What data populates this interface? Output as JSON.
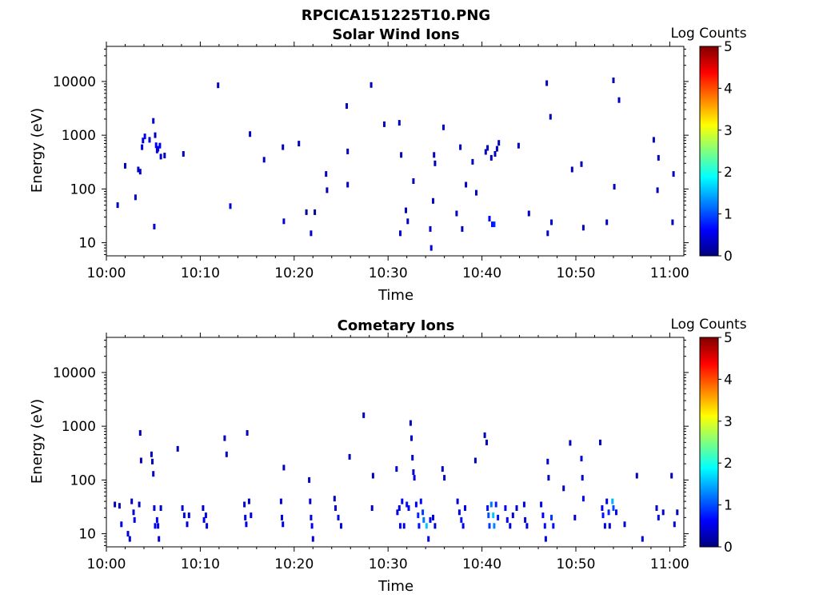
{
  "figure_title": "RPCICA151225T10.PNG",
  "colors": {
    "colormap": [
      "#00007f",
      "#0000ff",
      "#007fff",
      "#00ffff",
      "#7fff7f",
      "#ffff00",
      "#ff7f00",
      "#ff0000",
      "#7f0000"
    ]
  },
  "chart_data": [
    {
      "type": "heatmap",
      "title": "Solar Wind Ions",
      "xlabel": "Time",
      "ylabel": "Energy (eV)",
      "xticks": [
        "10:00",
        "10:10",
        "10:20",
        "10:30",
        "10:40",
        "10:50",
        "11:00"
      ],
      "xlim_min": [
        0,
        61.5
      ],
      "yticks": [
        "10",
        "100",
        "1000",
        "10000"
      ],
      "ylim_eV": [
        5.7,
        45000
      ],
      "yscale": "log",
      "colorbar": {
        "label": "Log Counts",
        "ticks": [
          "0",
          "1",
          "2",
          "3",
          "4",
          "5"
        ],
        "range": [
          0,
          5
        ]
      },
      "points": [
        [
          1.2,
          50,
          0.3
        ],
        [
          3.1,
          70,
          0.3
        ],
        [
          2.0,
          270,
          0.3
        ],
        [
          3.4,
          230,
          0.3
        ],
        [
          3.6,
          210,
          0.4
        ],
        [
          3.8,
          600,
          0.5
        ],
        [
          3.9,
          800,
          0.5
        ],
        [
          4.1,
          950,
          0.6
        ],
        [
          4.6,
          820,
          0.4
        ],
        [
          5.0,
          1850,
          0.4
        ],
        [
          5.2,
          1000,
          0.3
        ],
        [
          5.3,
          650,
          0.6
        ],
        [
          5.4,
          520,
          0.5
        ],
        [
          5.5,
          560,
          0.5
        ],
        [
          5.7,
          640,
          0.6
        ],
        [
          5.8,
          400,
          0.4
        ],
        [
          6.2,
          420,
          0.3
        ],
        [
          8.2,
          450,
          0.3
        ],
        [
          5.1,
          20,
          0.4
        ],
        [
          11.9,
          8500,
          0.3
        ],
        [
          13.2,
          48,
          0.4
        ],
        [
          15.3,
          1050,
          0.3
        ],
        [
          16.8,
          350,
          0.3
        ],
        [
          18.8,
          600,
          0.3
        ],
        [
          18.9,
          25,
          0.4
        ],
        [
          20.5,
          700,
          0.3
        ],
        [
          21.3,
          37,
          0.1
        ],
        [
          22.2,
          37,
          0.1
        ],
        [
          21.8,
          15,
          0.4
        ],
        [
          23.4,
          190,
          0.3
        ],
        [
          23.5,
          95,
          0.3
        ],
        [
          25.6,
          3500,
          0.3
        ],
        [
          25.7,
          500,
          0.3
        ],
        [
          25.7,
          120,
          0.3
        ],
        [
          28.2,
          8600,
          0.3
        ],
        [
          29.6,
          1600,
          0.3
        ],
        [
          31.2,
          1700,
          0.3
        ],
        [
          31.4,
          430,
          0.3
        ],
        [
          31.3,
          15,
          0.4
        ],
        [
          31.9,
          40,
          0.3
        ],
        [
          32.1,
          25,
          0.3
        ],
        [
          32.7,
          140,
          0.3
        ],
        [
          34.5,
          18,
          0.4
        ],
        [
          34.6,
          8,
          0.5
        ],
        [
          34.8,
          60,
          0.3
        ],
        [
          34.9,
          430,
          0.3
        ],
        [
          35.0,
          300,
          0.3
        ],
        [
          35.9,
          1400,
          0.4
        ],
        [
          37.3,
          35,
          0.3
        ],
        [
          37.7,
          600,
          0.3
        ],
        [
          37.9,
          18,
          0.3
        ],
        [
          38.3,
          120,
          0.3
        ],
        [
          39.0,
          320,
          0.3
        ],
        [
          39.4,
          85,
          0.3
        ],
        [
          40.4,
          490,
          0.3
        ],
        [
          40.6,
          580,
          0.3
        ],
        [
          40.8,
          28,
          0.6
        ],
        [
          41.0,
          380,
          0.3
        ],
        [
          41.1,
          22,
          0.7
        ],
        [
          41.3,
          22,
          0.8
        ],
        [
          41.4,
          450,
          0.3
        ],
        [
          41.6,
          560,
          0.3
        ],
        [
          41.8,
          720,
          0.3
        ],
        [
          43.9,
          640,
          0.3
        ],
        [
          45.0,
          35,
          0.3
        ],
        [
          46.9,
          9300,
          0.3
        ],
        [
          47.0,
          15,
          0.4
        ],
        [
          47.3,
          2200,
          0.3
        ],
        [
          47.4,
          24,
          0.4
        ],
        [
          49.6,
          230,
          0.3
        ],
        [
          50.6,
          290,
          0.3
        ],
        [
          50.8,
          19,
          0.3
        ],
        [
          53.3,
          24,
          0.3
        ],
        [
          54.0,
          10500,
          0.3
        ],
        [
          54.1,
          110,
          0.3
        ],
        [
          54.6,
          4500,
          0.3
        ],
        [
          58.3,
          820,
          0.3
        ],
        [
          58.8,
          380,
          0.3
        ],
        [
          58.7,
          95,
          0.3
        ],
        [
          60.4,
          190,
          0.3
        ],
        [
          60.3,
          24,
          0.3
        ]
      ]
    },
    {
      "type": "heatmap",
      "title": "Cometary Ions",
      "xlabel": "Time",
      "ylabel": "Energy (eV)",
      "xticks": [
        "10:00",
        "10:10",
        "10:20",
        "10:30",
        "10:40",
        "10:50",
        "11:00"
      ],
      "xlim_min": [
        0,
        61.5
      ],
      "yticks": [
        "10",
        "100",
        "1000",
        "10000"
      ],
      "ylim_eV": [
        5.7,
        45000
      ],
      "yscale": "log",
      "colorbar": {
        "label": "Log Counts",
        "ticks": [
          "0",
          "1",
          "2",
          "3",
          "4",
          "5"
        ],
        "range": [
          0,
          5
        ]
      },
      "points": [
        [
          0.9,
          35,
          0.3
        ],
        [
          1.4,
          33,
          0.3
        ],
        [
          1.6,
          15,
          0.5
        ],
        [
          2.3,
          10,
          0.4
        ],
        [
          2.5,
          8,
          0.4
        ],
        [
          2.7,
          40,
          0.3
        ],
        [
          2.9,
          25,
          0.4
        ],
        [
          3.0,
          18,
          0.5
        ],
        [
          3.6,
          750,
          0.3
        ],
        [
          3.7,
          230,
          0.3
        ],
        [
          3.5,
          35,
          0.3
        ],
        [
          4.8,
          300,
          0.3
        ],
        [
          4.9,
          220,
          0.3
        ],
        [
          5.0,
          130,
          0.4
        ],
        [
          5.1,
          30,
          0.5
        ],
        [
          5.2,
          14,
          0.6
        ],
        [
          5.4,
          18,
          0.6
        ],
        [
          5.5,
          14,
          0.5
        ],
        [
          5.6,
          8,
          0.4
        ],
        [
          5.8,
          30,
          0.4
        ],
        [
          7.6,
          380,
          0.3
        ],
        [
          8.1,
          30,
          0.5
        ],
        [
          8.3,
          22,
          0.5
        ],
        [
          8.6,
          15,
          0.4
        ],
        [
          8.8,
          22,
          0.4
        ],
        [
          10.3,
          30,
          0.4
        ],
        [
          10.4,
          18,
          0.5
        ],
        [
          10.6,
          22,
          0.5
        ],
        [
          10.7,
          14,
          0.5
        ],
        [
          12.6,
          600,
          0.3
        ],
        [
          12.8,
          300,
          0.3
        ],
        [
          14.7,
          35,
          0.4
        ],
        [
          14.8,
          20,
          0.5
        ],
        [
          14.9,
          15,
          0.5
        ],
        [
          15.0,
          750,
          0.3
        ],
        [
          15.2,
          40,
          0.3
        ],
        [
          15.4,
          22,
          0.5
        ],
        [
          18.6,
          40,
          0.4
        ],
        [
          18.7,
          20,
          0.5
        ],
        [
          18.8,
          15,
          0.5
        ],
        [
          18.9,
          170,
          0.3
        ],
        [
          21.6,
          100,
          0.3
        ],
        [
          21.7,
          40,
          0.4
        ],
        [
          21.8,
          20,
          0.5
        ],
        [
          21.9,
          14,
          0.6
        ],
        [
          22.0,
          8,
          0.4
        ],
        [
          24.3,
          45,
          0.3
        ],
        [
          24.4,
          30,
          0.4
        ],
        [
          24.7,
          20,
          0.5
        ],
        [
          25.0,
          14,
          0.5
        ],
        [
          25.9,
          270,
          0.3
        ],
        [
          27.4,
          1600,
          0.3
        ],
        [
          28.3,
          30,
          0.3
        ],
        [
          28.4,
          120,
          0.3
        ],
        [
          30.9,
          160,
          0.4
        ],
        [
          31.0,
          25,
          0.5
        ],
        [
          31.2,
          30,
          0.5
        ],
        [
          31.3,
          14,
          0.6
        ],
        [
          31.5,
          40,
          0.6
        ],
        [
          31.7,
          14,
          0.5
        ],
        [
          32.0,
          35,
          0.7
        ],
        [
          32.2,
          30,
          0.6
        ],
        [
          32.4,
          1150,
          0.3
        ],
        [
          32.5,
          600,
          0.4
        ],
        [
          32.6,
          260,
          0.4
        ],
        [
          32.7,
          140,
          0.4
        ],
        [
          32.8,
          110,
          0.5
        ],
        [
          33.0,
          35,
          0.6
        ],
        [
          33.2,
          22,
          0.8
        ],
        [
          33.3,
          14,
          0.7
        ],
        [
          33.5,
          40,
          0.7
        ],
        [
          33.7,
          25,
          0.9
        ],
        [
          33.8,
          18,
          1.2
        ],
        [
          34.1,
          14,
          1.6
        ],
        [
          34.3,
          8,
          0.5
        ],
        [
          34.5,
          18,
          0.6
        ],
        [
          34.8,
          20,
          0.5
        ],
        [
          35.0,
          14,
          0.4
        ],
        [
          35.8,
          160,
          0.3
        ],
        [
          36.0,
          110,
          0.3
        ],
        [
          37.4,
          40,
          0.4
        ],
        [
          37.6,
          25,
          0.5
        ],
        [
          37.8,
          18,
          0.7
        ],
        [
          38.0,
          14,
          0.6
        ],
        [
          38.2,
          30,
          0.6
        ],
        [
          39.3,
          230,
          0.3
        ],
        [
          40.3,
          680,
          0.3
        ],
        [
          40.5,
          500,
          0.3
        ],
        [
          40.6,
          30,
          0.7
        ],
        [
          40.7,
          22,
          1.0
        ],
        [
          40.8,
          14,
          0.9
        ],
        [
          41.0,
          35,
          1.2
        ],
        [
          41.2,
          22,
          1.6
        ],
        [
          41.3,
          14,
          1.3
        ],
        [
          41.5,
          35,
          0.8
        ],
        [
          41.7,
          20,
          0.7
        ],
        [
          42.5,
          30,
          0.6
        ],
        [
          42.7,
          18,
          0.6
        ],
        [
          43.0,
          14,
          0.5
        ],
        [
          43.3,
          22,
          0.4
        ],
        [
          43.7,
          30,
          0.4
        ],
        [
          44.5,
          35,
          0.5
        ],
        [
          44.6,
          18,
          0.4
        ],
        [
          44.8,
          14,
          0.5
        ],
        [
          46.3,
          35,
          0.5
        ],
        [
          46.5,
          22,
          0.6
        ],
        [
          46.7,
          14,
          0.7
        ],
        [
          46.8,
          8,
          0.5
        ],
        [
          47.0,
          220,
          0.4
        ],
        [
          47.1,
          110,
          0.3
        ],
        [
          47.4,
          20,
          0.9
        ],
        [
          47.6,
          14,
          0.7
        ],
        [
          48.7,
          70,
          0.3
        ],
        [
          49.4,
          490,
          0.3
        ],
        [
          49.9,
          20,
          0.4
        ],
        [
          50.6,
          250,
          0.5
        ],
        [
          50.7,
          110,
          0.4
        ],
        [
          50.8,
          45,
          0.6
        ],
        [
          52.6,
          500,
          0.3
        ],
        [
          52.8,
          30,
          0.6
        ],
        [
          52.9,
          22,
          0.7
        ],
        [
          53.1,
          14,
          0.5
        ],
        [
          53.3,
          40,
          0.5
        ],
        [
          53.5,
          25,
          0.8
        ],
        [
          53.6,
          14,
          0.4
        ],
        [
          53.9,
          40,
          1.5
        ],
        [
          54.0,
          30,
          1.0
        ],
        [
          54.3,
          25,
          0.6
        ],
        [
          55.2,
          15,
          0.4
        ],
        [
          56.5,
          120,
          0.3
        ],
        [
          57.1,
          8,
          0.5
        ],
        [
          58.6,
          30,
          0.4
        ],
        [
          58.8,
          20,
          0.5
        ],
        [
          59.3,
          25,
          0.4
        ],
        [
          60.2,
          120,
          0.3
        ],
        [
          60.5,
          15,
          0.4
        ],
        [
          60.8,
          25,
          0.3
        ]
      ]
    }
  ]
}
